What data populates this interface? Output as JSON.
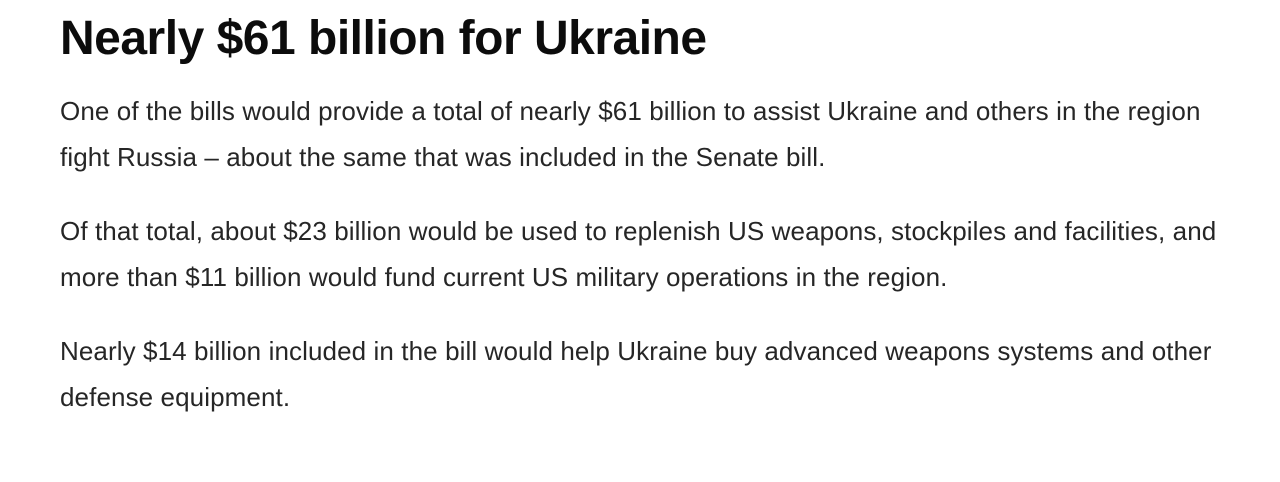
{
  "article": {
    "headline": "Nearly $61 billion for Ukraine",
    "paragraphs": [
      "One of the bills would provide a total of nearly $61 billion to assist Ukraine and others in the region fight Russia – about the same that was included in the Senate bill.",
      "Of that total, about $23 billion would be used to replenish US weapons, stockpiles and facilities, and more than $11 billion would fund current US military operations in the region.",
      "Nearly $14 billion included in the bill would help Ukraine buy advanced weapons systems and other defense equipment."
    ]
  },
  "colors": {
    "background": "#ffffff",
    "headline_text": "#0c0c0c",
    "body_text": "#262626"
  }
}
